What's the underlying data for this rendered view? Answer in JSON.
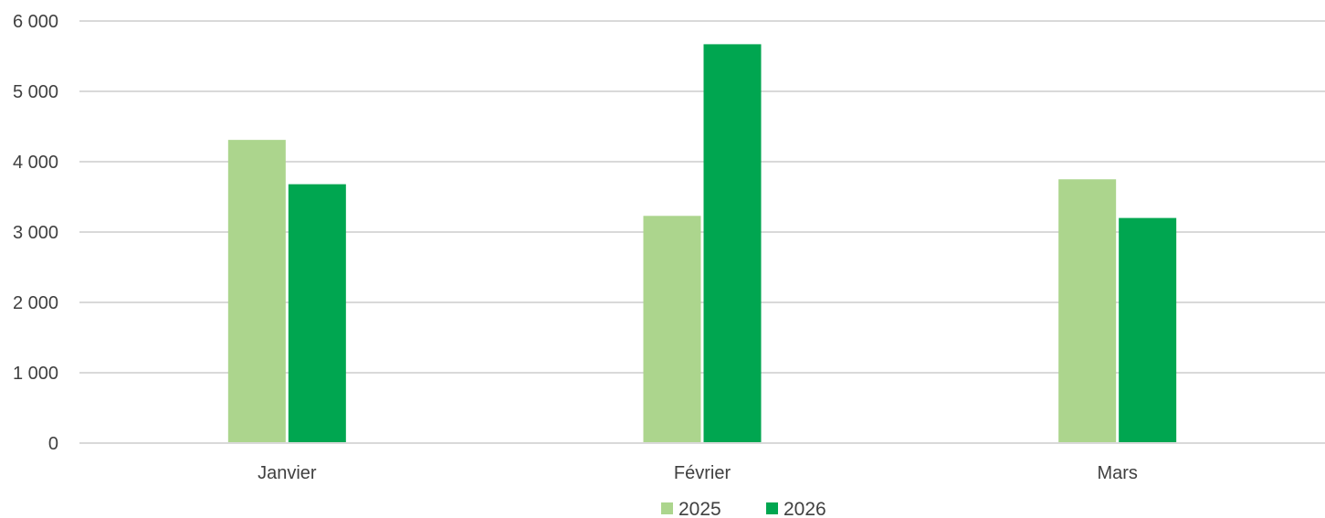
{
  "chart_data": {
    "type": "bar",
    "categories": [
      "Janvier",
      "Février",
      "Mars"
    ],
    "series": [
      {
        "name": "2025",
        "values": [
          4310,
          3230,
          3750
        ],
        "color": "#acd58d"
      },
      {
        "name": "2026",
        "values": [
          3680,
          5670,
          3200
        ],
        "color": "#00a650"
      }
    ],
    "ylim": [
      0,
      6000
    ],
    "y_ticks": [
      0,
      1000,
      2000,
      3000,
      4000,
      5000,
      6000
    ],
    "y_tick_labels": [
      "0",
      "1 000",
      "2 000",
      "3 000",
      "4 000",
      "5 000",
      "6 000"
    ],
    "grid": true,
    "legend_position": "bottom",
    "title": "",
    "xlabel": "",
    "ylabel": ""
  }
}
